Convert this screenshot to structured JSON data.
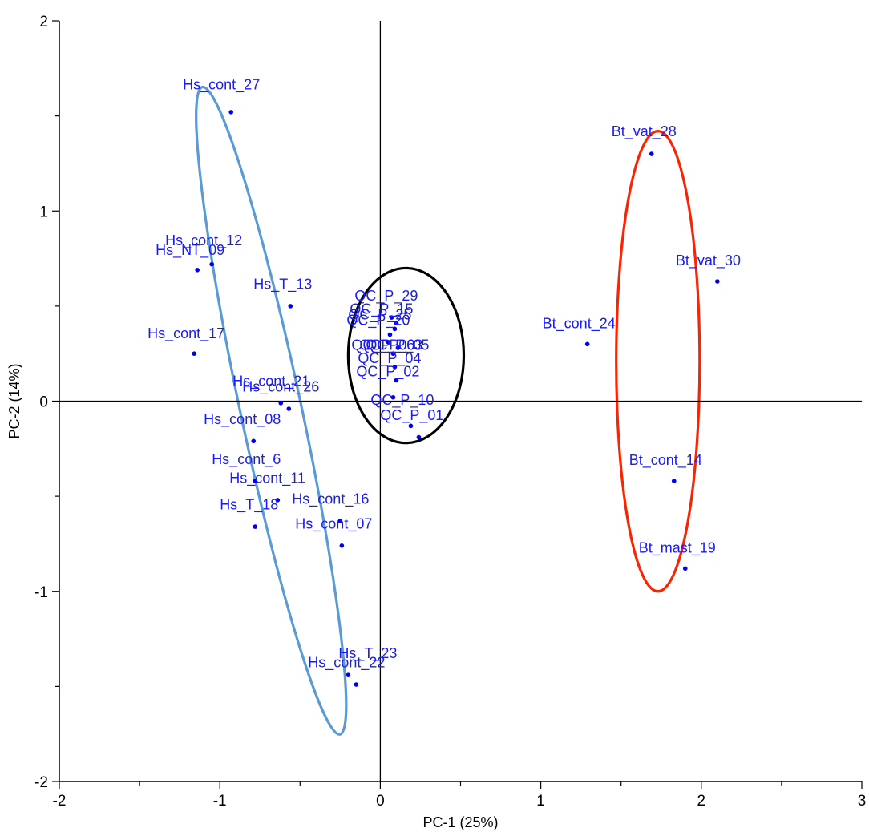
{
  "chart_data": {
    "type": "scatter",
    "xlabel": "PC-1 (25%)",
    "ylabel": "PC-2 (14%)",
    "xlim": [
      -2,
      3
    ],
    "ylim": [
      -2,
      2
    ],
    "x_ticks": [
      "-2",
      "-1",
      "0",
      "1",
      "2",
      "3"
    ],
    "y_ticks": [
      "-2",
      "-1",
      "0",
      "1",
      "2"
    ],
    "point_color": "#0000ee",
    "label_color": "#1a1aff",
    "points": [
      {
        "label": "Hs_cont_27",
        "x": -0.93,
        "y": 1.52
      },
      {
        "label": "Hs_cont_12",
        "x": -1.05,
        "y": 0.72
      },
      {
        "label": "Hs_NT_09",
        "x": -1.14,
        "y": 0.69
      },
      {
        "label": "Hs_T_13",
        "x": -0.56,
        "y": 0.5
      },
      {
        "label": "Hs_cont_17",
        "x": -1.16,
        "y": 0.25
      },
      {
        "label": "Hs_cont_21",
        "x": -0.62,
        "y": -0.01
      },
      {
        "label": "Hs_cont_26",
        "x": -0.57,
        "y": -0.04
      },
      {
        "label": "Hs_cont_08",
        "x": -0.79,
        "y": -0.21
      },
      {
        "label": "Hs_cont_6",
        "x": -0.78,
        "y": -0.42
      },
      {
        "label": "Hs_cont_11",
        "x": -0.64,
        "y": -0.52
      },
      {
        "label": "Hs_T_18",
        "x": -0.78,
        "y": -0.66
      },
      {
        "label": "Hs_cont_16",
        "x": -0.25,
        "y": -0.63
      },
      {
        "label": "Hs_cont_07",
        "x": -0.24,
        "y": -0.76
      },
      {
        "label": "Hs_T_23",
        "x": -0.2,
        "y": -1.44
      },
      {
        "label": "Hs_cont_22",
        "x": -0.15,
        "y": -1.49
      },
      {
        "label": "QC_P_29",
        "x": 0.07,
        "y": 0.44
      },
      {
        "label": "QC_P_15",
        "x": 0.1,
        "y": 0.41
      },
      {
        "label": "QC_P_25",
        "x": 0.09,
        "y": 0.38
      },
      {
        "label": "QC_P_20",
        "x": 0.06,
        "y": 0.35
      },
      {
        "label": "QC_P_06",
        "x": 0.05,
        "y": 0.31
      },
      {
        "label": "QC_P_03",
        "x": 0.11,
        "y": 0.28
      },
      {
        "label": "QC_P_05",
        "x": 0.08,
        "y": 0.25
      },
      {
        "label": "QC_P_04",
        "x": 0.09,
        "y": 0.18
      },
      {
        "label": "QC_P_02",
        "x": 0.1,
        "y": 0.11
      },
      {
        "label": "QC_P_10",
        "x": 0.08,
        "y": 0.02
      },
      {
        "label": "QC_P_01",
        "x": 0.19,
        "y": -0.13
      },
      {
        "label": "QC_P_",
        "x": 0.24,
        "y": -0.19
      },
      {
        "label": "Bt_vat_28",
        "x": 1.69,
        "y": 1.3
      },
      {
        "label": "Bt_vat_30",
        "x": 2.1,
        "y": 0.63
      },
      {
        "label": "Bt_cont_24",
        "x": 1.29,
        "y": 0.3
      },
      {
        "label": "Bt_cont_14",
        "x": 1.83,
        "y": -0.42
      },
      {
        "label": "Bt_mast_19",
        "x": 1.9,
        "y": -0.88
      }
    ],
    "point_labels": [
      {
        "text": "Hs_cont_27",
        "x": -1.23,
        "y": 1.64
      },
      {
        "text": "Hs_cont_12",
        "x": -1.34,
        "y": 0.82
      },
      {
        "text": "Hs_NT_09",
        "x": -1.4,
        "y": 0.77
      },
      {
        "text": "Hs_T_13",
        "x": -0.79,
        "y": 0.59
      },
      {
        "text": "Hs_cont_17",
        "x": -1.45,
        "y": 0.33
      },
      {
        "text": "Hs_cont_21",
        "x": -0.92,
        "y": 0.08
      },
      {
        "text": "Hs_cont_26",
        "x": -0.86,
        "y": 0.05
      },
      {
        "text": "Hs_cont_08",
        "x": -1.1,
        "y": -0.12
      },
      {
        "text": "Hs_cont_6",
        "x": -1.05,
        "y": -0.33
      },
      {
        "text": "Hs_cont_11",
        "x": -0.94,
        "y": -0.43
      },
      {
        "text": "Hs_T_18",
        "x": -1.0,
        "y": -0.57
      },
      {
        "text": "Hs_cont_16",
        "x": -0.55,
        "y": -0.54
      },
      {
        "text": "Hs_cont_07",
        "x": -0.53,
        "y": -0.67
      },
      {
        "text": "Hs_T_23",
        "x": -0.26,
        "y": -1.35
      },
      {
        "text": "Hs_cont_22",
        "x": -0.45,
        "y": -1.4
      },
      {
        "text": "QC_P_29",
        "x": -0.16,
        "y": 0.53
      },
      {
        "text": "QC_P_15",
        "x": -0.19,
        "y": 0.46
      },
      {
        "text": "QC_P_25",
        "x": -0.2,
        "y": 0.43
      },
      {
        "text": "QC_P_20",
        "x": -0.21,
        "y": 0.4
      },
      {
        "text": "QC_P_06",
        "x": -0.18,
        "y": 0.27
      },
      {
        "text": "QC_P_03",
        "x": -0.13,
        "y": 0.27
      },
      {
        "text": "QC_P_05",
        "x": -0.09,
        "y": 0.27
      },
      {
        "text": "QC_P_04",
        "x": -0.14,
        "y": 0.2
      },
      {
        "text": "QC_P_02",
        "x": -0.15,
        "y": 0.13
      },
      {
        "text": "QC_P_10",
        "x": -0.06,
        "y": -0.02
      },
      {
        "text": "QC_P_01",
        "x": 0.0,
        "y": -0.1
      }
    ],
    "ellipses": [
      {
        "name": "blue",
        "color": "#5b9bd5",
        "cx": -0.68,
        "cy": -0.05,
        "rx": 0.19,
        "ry": 1.74,
        "angle_deg": -12
      },
      {
        "name": "black",
        "color": "#000000",
        "cx": 0.16,
        "cy": 0.24,
        "rx": 0.36,
        "ry": 0.46,
        "angle_deg": 0
      },
      {
        "name": "red",
        "color": "#ff2200",
        "cx": 1.73,
        "cy": 0.21,
        "rx": 0.26,
        "ry": 1.21,
        "angle_deg": 0
      }
    ]
  }
}
